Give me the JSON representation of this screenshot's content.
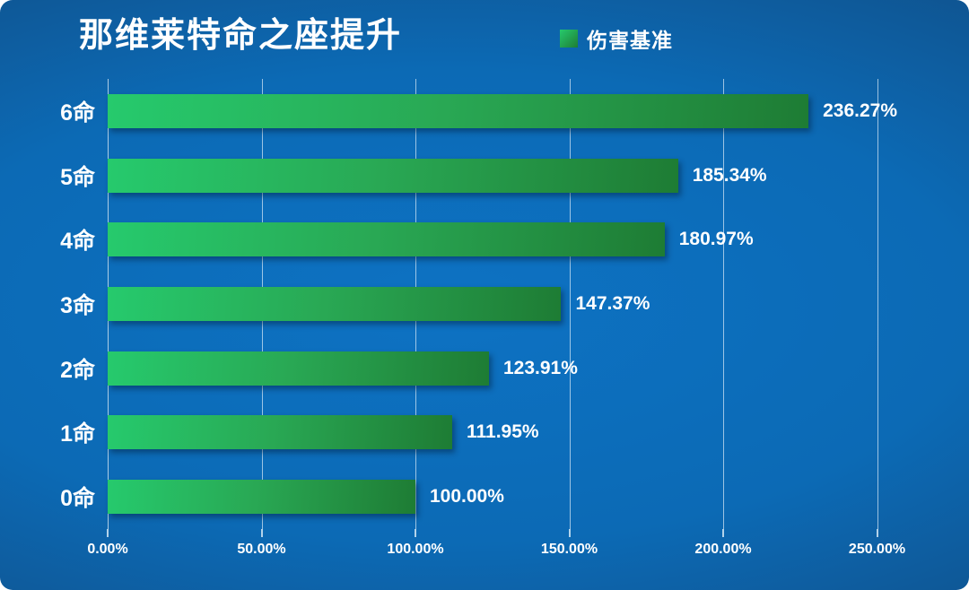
{
  "title": "那维莱特命之座提升",
  "legend": {
    "series": "伤害基准",
    "position": "top-center"
  },
  "chart_data": {
    "type": "bar",
    "orientation": "horizontal",
    "title": "那维莱特命之座提升",
    "series_name": "伤害基准",
    "categories": [
      "6命",
      "5命",
      "4命",
      "3命",
      "2命",
      "1命",
      "0命"
    ],
    "values": [
      236.27,
      185.34,
      180.97,
      147.37,
      123.91,
      111.95,
      100.0
    ],
    "value_labels": [
      "236.27%",
      "185.34%",
      "180.97%",
      "147.37%",
      "123.91%",
      "111.95%",
      "100.00%"
    ],
    "x_tick_values": [
      0,
      50,
      100,
      150,
      200,
      250
    ],
    "x_tick_labels": [
      "0.00%",
      "50.00%",
      "100.00%",
      "150.00%",
      "200.00%",
      "250.00%"
    ],
    "xlim": [
      0,
      256
    ],
    "grid": true,
    "legend_position": "top",
    "colors": {
      "bar_gradient_start": "#26ca6d",
      "bar_gradient_end": "#1e7c34",
      "background_center": "#0d72c3",
      "background_edge": "#123a62",
      "text": "#ffffff",
      "gridline": "#e8f2fa"
    }
  }
}
